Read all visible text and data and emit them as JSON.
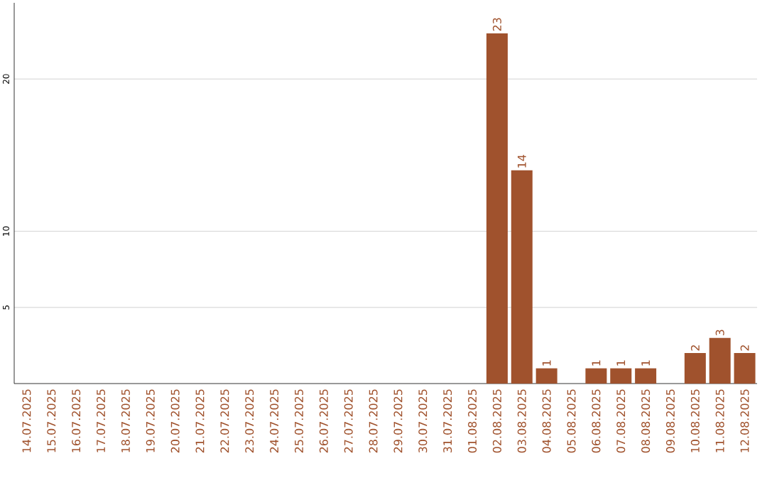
{
  "chart_data": {
    "type": "bar",
    "categories": [
      "14.07.2025",
      "15.07.2025",
      "16.07.2025",
      "17.07.2025",
      "18.07.2025",
      "19.07.2025",
      "20.07.2025",
      "21.07.2025",
      "22.07.2025",
      "23.07.2025",
      "24.07.2025",
      "25.07.2025",
      "26.07.2025",
      "27.07.2025",
      "28.07.2025",
      "29.07.2025",
      "30.07.2025",
      "31.07.2025",
      "01.08.2025",
      "02.08.2025",
      "03.08.2025",
      "04.08.2025",
      "05.08.2025",
      "06.08.2025",
      "07.08.2025",
      "08.08.2025",
      "09.08.2025",
      "10.08.2025",
      "11.08.2025",
      "12.08.2025"
    ],
    "values": [
      0,
      0,
      0,
      0,
      0,
      0,
      0,
      0,
      0,
      0,
      0,
      0,
      0,
      0,
      0,
      0,
      0,
      0,
      0,
      23,
      14,
      1,
      0,
      1,
      1,
      1,
      0,
      2,
      3,
      2
    ],
    "value_labels": [
      null,
      null,
      null,
      null,
      null,
      null,
      null,
      null,
      null,
      null,
      null,
      null,
      null,
      null,
      null,
      null,
      null,
      null,
      null,
      "23",
      "14",
      "1",
      null,
      "1",
      "1",
      "1",
      null,
      "2",
      "3",
      "2"
    ],
    "color": "#a0522d",
    "ylim": [
      0,
      25
    ],
    "yticks": [
      5,
      10,
      20
    ],
    "grid": "y"
  }
}
